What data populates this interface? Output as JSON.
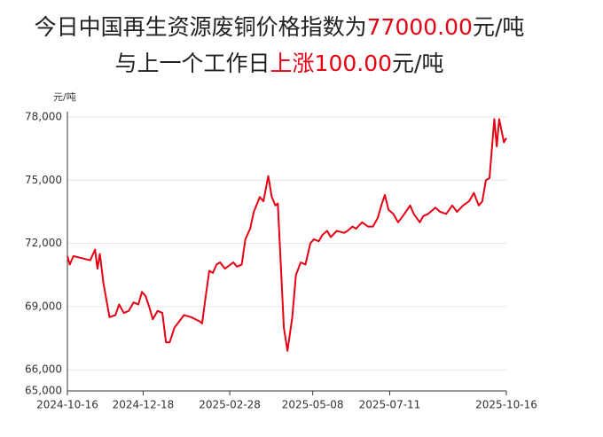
{
  "chart_data": {
    "type": "line",
    "title_lines": [
      [
        {
          "text": "今日中国再生资源废铜价格指数为"
        },
        {
          "text": "77000.00",
          "highlight": true
        },
        {
          "text": "元/吨"
        }
      ],
      [
        {
          "text": "与上一个工作日"
        },
        {
          "text": "上涨100.00",
          "highlight": true
        },
        {
          "text": "元/吨"
        }
      ]
    ],
    "highlight_color": "#e60012",
    "y_unit": "元/吨",
    "x": [
      "2024-10-16",
      "2024-10-18",
      "2024-10-21",
      "2024-10-28",
      "2024-11-04",
      "2024-11-08",
      "2024-11-10",
      "2024-11-12",
      "2024-11-15",
      "2024-11-20",
      "2024-11-25",
      "2024-11-28",
      "2024-12-02",
      "2024-12-06",
      "2024-12-10",
      "2024-12-14",
      "2024-12-17",
      "2024-12-20",
      "2024-12-23",
      "2024-12-26",
      "2024-12-30",
      "2025-01-03",
      "2025-01-06",
      "2025-01-09",
      "2025-01-13",
      "2025-01-17",
      "2025-01-21",
      "2025-01-27",
      "2025-02-03",
      "2025-02-05",
      "2025-02-08",
      "2025-02-11",
      "2025-02-14",
      "2025-02-17",
      "2025-02-20",
      "2025-02-24",
      "2025-03-03",
      "2025-03-06",
      "2025-03-10",
      "2025-03-13",
      "2025-03-17",
      "2025-03-20",
      "2025-03-25",
      "2025-03-28",
      "2025-04-01",
      "2025-04-04",
      "2025-04-07",
      "2025-04-09",
      "2025-04-14",
      "2025-04-17",
      "2025-04-21",
      "2025-04-24",
      "2025-04-28",
      "2025-05-02",
      "2025-05-06",
      "2025-05-09",
      "2025-05-13",
      "2025-05-16",
      "2025-05-20",
      "2025-05-23",
      "2025-05-28",
      "2025-06-03",
      "2025-06-06",
      "2025-06-10",
      "2025-06-13",
      "2025-06-18",
      "2025-06-23",
      "2025-06-27",
      "2025-07-01",
      "2025-07-04",
      "2025-07-07",
      "2025-07-10",
      "2025-07-14",
      "2025-07-18",
      "2025-07-22",
      "2025-07-28",
      "2025-07-31",
      "2025-08-05",
      "2025-08-08",
      "2025-08-12",
      "2025-08-18",
      "2025-08-22",
      "2025-08-27",
      "2025-09-01",
      "2025-09-05",
      "2025-09-10",
      "2025-09-15",
      "2025-09-19",
      "2025-09-23",
      "2025-09-26",
      "2025-09-29",
      "2025-10-02",
      "2025-10-06",
      "2025-10-08",
      "2025-10-10",
      "2025-10-14",
      "2025-10-16"
    ],
    "series": [
      {
        "color": "#e60012",
        "values": [
          71400,
          71000,
          71400,
          71300,
          71200,
          71700,
          70800,
          71500,
          70100,
          68500,
          68600,
          69100,
          68700,
          68800,
          69200,
          69100,
          69700,
          69500,
          69000,
          68400,
          68800,
          68700,
          67300,
          67300,
          68000,
          68300,
          68600,
          68500,
          68300,
          68200,
          69500,
          70700,
          70600,
          71000,
          71100,
          70800,
          71100,
          70900,
          71000,
          72200,
          72700,
          73500,
          74200,
          74000,
          75200,
          74200,
          73800,
          73900,
          68000,
          66900,
          68500,
          70500,
          71100,
          71000,
          72000,
          72200,
          72100,
          72400,
          72600,
          72300,
          72600,
          72500,
          72600,
          72800,
          72700,
          73000,
          72800,
          72800,
          73200,
          73800,
          74300,
          73600,
          73400,
          73000,
          73300,
          73800,
          73400,
          73000,
          73300,
          73400,
          73700,
          73500,
          73400,
          73800,
          73500,
          73800,
          74000,
          74400,
          73800,
          74000,
          75000,
          75100,
          77900,
          76600,
          77900,
          76800,
          77000
        ]
      }
    ],
    "xlim": [
      "2024-10-16",
      "2025-10-16"
    ],
    "xticks": [
      "2024-10-16",
      "2024-12-18",
      "2025-02-28",
      "2025-05-08",
      "2025-07-11",
      "2025-10-16"
    ],
    "ylim": [
      65000,
      78000
    ],
    "yticks": [
      {
        "value": 65000,
        "label": "65,000"
      },
      {
        "value": 66000,
        "label": "66,000"
      },
      {
        "value": 69000,
        "label": "69,000"
      },
      {
        "value": 72000,
        "label": "72,000"
      },
      {
        "value": 75000,
        "label": "75,000"
      },
      {
        "value": 78000,
        "label": "78,000"
      }
    ],
    "grid": true
  }
}
